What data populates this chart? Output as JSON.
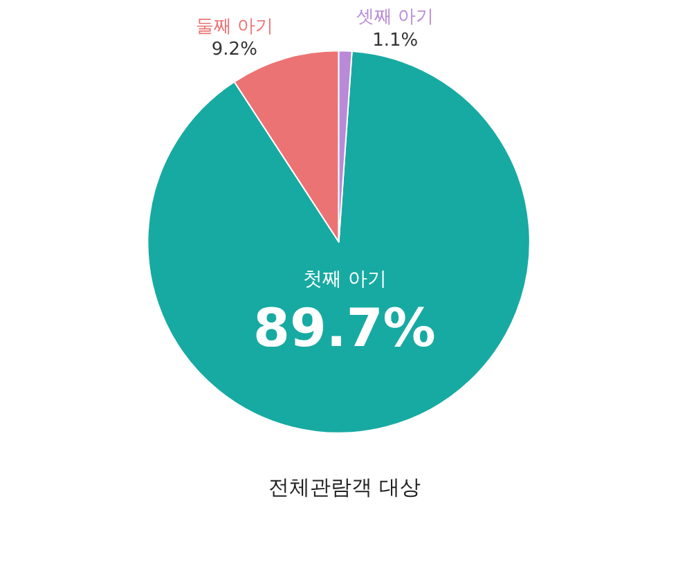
{
  "chart_data": {
    "type": "pie",
    "title": "전체관람객 대상",
    "categories": [
      "첫째 아기",
      "둘째 아기",
      "셋째 아기"
    ],
    "values": [
      89.7,
      9.2,
      1.1
    ],
    "value_labels": [
      "89.7%",
      "9.2%",
      "1.1%"
    ],
    "colors": [
      "#17aaa2",
      "#ec7373",
      "#b98ad8"
    ],
    "legend": false
  }
}
